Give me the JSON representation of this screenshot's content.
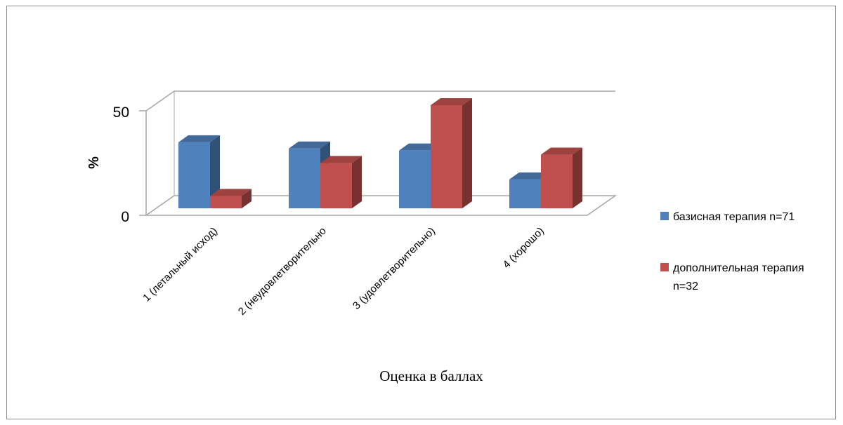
{
  "chart_data": {
    "type": "bar",
    "style": "3d-clustered-column",
    "categories": [
      "1 (летальный исход)",
      "2 (неудовлетворительно",
      "3 (удовлетворительно)",
      "4 (хорошо)"
    ],
    "series": [
      {
        "name": "базисная терапия n=71",
        "color": "#4f81bd",
        "values": [
          32,
          29,
          28,
          14
        ]
      },
      {
        "name": "дополнительная терапия n=32",
        "color": "#c0504d",
        "values": [
          6,
          22,
          50,
          26
        ]
      }
    ],
    "ylabel": "%",
    "xlabel": "Оценка в баллах",
    "ylim": [
      0,
      50
    ],
    "yticks": [
      "0",
      "50"
    ],
    "grid": true,
    "legend": {
      "position": "right",
      "entries": [
        {
          "line1": "базисная терапия n=71"
        },
        {
          "line1": "дополнительная терапия",
          "line2": "n=32"
        }
      ]
    }
  }
}
